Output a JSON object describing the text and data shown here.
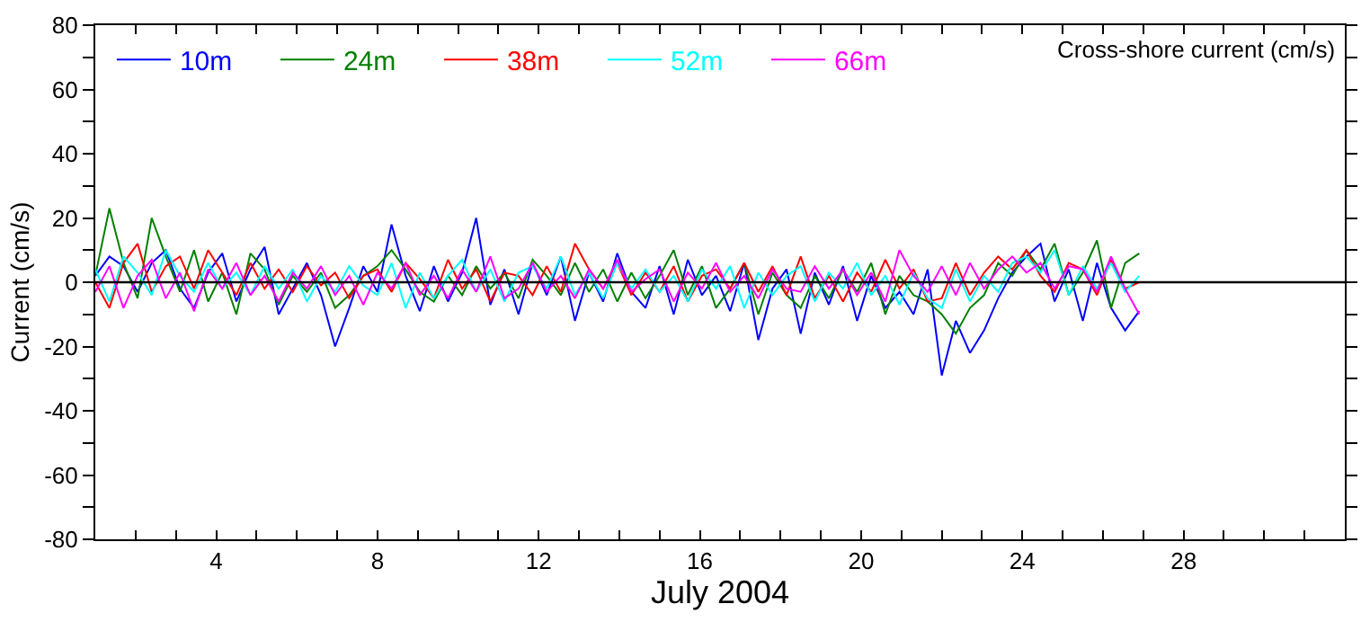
{
  "chart_data": {
    "type": "line",
    "title": "Cross-shore current (cm/s)",
    "xlabel": "July 2004",
    "ylabel": "Current (cm/s)",
    "x": [
      1,
      1.35,
      1.7,
      2.05,
      2.4,
      2.75,
      3.1,
      3.45,
      3.8,
      4.15,
      4.5,
      4.85,
      5.2,
      5.55,
      5.9,
      6.25,
      6.6,
      6.95,
      7.3,
      7.65,
      8,
      8.35,
      8.7,
      9.05,
      9.4,
      9.75,
      10.1,
      10.45,
      10.8,
      11.15,
      11.5,
      11.85,
      12.2,
      12.55,
      12.9,
      13.25,
      13.6,
      13.95,
      14.3,
      14.65,
      15,
      15.35,
      15.7,
      16.05,
      16.4,
      16.75,
      17.1,
      17.45,
      17.8,
      18.15,
      18.5,
      18.85,
      19.2,
      19.55,
      19.9,
      20.25,
      20.6,
      20.95,
      21.3,
      21.65,
      22,
      22.35,
      22.7,
      23.05,
      23.4,
      23.75,
      24.1,
      24.45,
      24.8,
      25.15,
      25.5,
      25.85,
      26.2,
      26.55,
      26.9
    ],
    "series": [
      {
        "name": "10m",
        "color": "#0000ff",
        "values": [
          2,
          8,
          5,
          -3,
          6,
          10,
          -2,
          -8,
          3,
          9,
          -6,
          4,
          11,
          -10,
          -2,
          6,
          -4,
          -20,
          -8,
          5,
          -3,
          18,
          2,
          -9,
          5,
          -6,
          3,
          20,
          -7,
          4,
          -10,
          6,
          -4,
          8,
          -12,
          3,
          -6,
          9,
          -3,
          -8,
          5,
          -10,
          7,
          -4,
          2,
          -9,
          6,
          -18,
          -2,
          4,
          -16,
          3,
          -7,
          5,
          -12,
          2,
          -8,
          -3,
          -10,
          4,
          -29,
          -12,
          -22,
          -15,
          -5,
          3,
          8,
          12,
          -6,
          4,
          -12,
          6,
          -8,
          -15,
          -9
        ]
      },
      {
        "name": "24m",
        "color": "#008000",
        "values": [
          2,
          23,
          6,
          -5,
          20,
          8,
          -3,
          10,
          -6,
          3,
          -10,
          9,
          4,
          -7,
          2,
          -3,
          3,
          -8,
          -4,
          2,
          5,
          10,
          4,
          -3,
          -6,
          2,
          -4,
          5,
          -2,
          3,
          -5,
          7,
          2,
          -4,
          6,
          -3,
          4,
          -6,
          3,
          -5,
          2,
          10,
          -4,
          5,
          -8,
          -2,
          6,
          -10,
          3,
          -4,
          -8,
          2,
          -5,
          4,
          -3,
          6,
          -10,
          2,
          -4,
          -6,
          -10,
          -16,
          -8,
          -4,
          6,
          2,
          10,
          4,
          12,
          -4,
          3,
          13,
          -8,
          6,
          9
        ]
      },
      {
        "name": "38m",
        "color": "#ff0000",
        "values": [
          0,
          -8,
          6,
          12,
          -3,
          5,
          8,
          -2,
          10,
          3,
          -4,
          6,
          -2,
          4,
          -3,
          5,
          -1,
          3,
          -5,
          2,
          4,
          -3,
          6,
          1,
          -5,
          7,
          -2,
          4,
          -6,
          3,
          2,
          -4,
          5,
          -3,
          12,
          4,
          -2,
          6,
          -4,
          3,
          -3,
          5,
          -6,
          2,
          4,
          -2,
          6,
          -3,
          5,
          -4,
          8,
          -5,
          2,
          -6,
          3,
          -3,
          7,
          -2,
          4,
          -6,
          -5,
          6,
          -4,
          3,
          8,
          4,
          10,
          2,
          -3,
          6,
          4,
          -4,
          7,
          -2,
          0
        ]
      },
      {
        "name": "52m",
        "color": "#00ffff",
        "values": [
          4,
          -6,
          8,
          3,
          -4,
          10,
          2,
          -3,
          6,
          -2,
          3,
          -4,
          5,
          -2,
          4,
          -6,
          2,
          -3,
          5,
          -1,
          -4,
          6,
          -8,
          3,
          -5,
          2,
          7,
          -3,
          4,
          -6,
          3,
          5,
          -2,
          8,
          -4,
          3,
          -5,
          6,
          -2,
          4,
          -3,
          2,
          -6,
          4,
          -2,
          5,
          -8,
          3,
          -4,
          2,
          5,
          -6,
          3,
          -2,
          6,
          -4,
          2,
          -7,
          3,
          -5,
          -8,
          4,
          -6,
          2,
          -3,
          6,
          8,
          3,
          10,
          -4,
          5,
          -2,
          6,
          -3,
          2
        ]
      },
      {
        "name": "66m",
        "color": "#ff00ff",
        "values": [
          -3,
          5,
          -8,
          2,
          7,
          -5,
          3,
          -9,
          4,
          -2,
          6,
          -4,
          2,
          -6,
          3,
          -2,
          5,
          -4,
          2,
          -7,
          3,
          -2,
          6,
          -4,
          2,
          -5,
          4,
          -3,
          8,
          -5,
          -2,
          6,
          -3,
          2,
          -5,
          4,
          -2,
          7,
          -3,
          1,
          4,
          -6,
          3,
          -2,
          6,
          -3,
          2,
          -5,
          4,
          -2,
          -3,
          5,
          -2,
          4,
          -4,
          3,
          -6,
          10,
          2,
          -3,
          5,
          -4,
          6,
          -2,
          4,
          8,
          3,
          6,
          -2,
          5,
          4,
          -3,
          8,
          -2,
          -10
        ]
      }
    ],
    "xlim": [
      1,
      32
    ],
    "xticks": [
      {
        "value": 1,
        "label": null
      },
      {
        "value": 2,
        "label": null
      },
      {
        "value": 3,
        "label": null
      },
      4,
      {
        "value": 5,
        "label": null
      },
      {
        "value": 6,
        "label": null
      },
      {
        "value": 7,
        "label": null
      },
      8,
      {
        "value": 9,
        "label": null
      },
      {
        "value": 10,
        "label": null
      },
      {
        "value": 11,
        "label": null
      },
      12,
      {
        "value": 13,
        "label": null
      },
      {
        "value": 14,
        "label": null
      },
      {
        "value": 15,
        "label": null
      },
      16,
      {
        "value": 17,
        "label": null
      },
      {
        "value": 18,
        "label": null
      },
      {
        "value": 19,
        "label": null
      },
      20,
      {
        "value": 21,
        "label": null
      },
      {
        "value": 22,
        "label": null
      },
      {
        "value": 23,
        "label": null
      },
      24,
      {
        "value": 25,
        "label": null
      },
      {
        "value": 26,
        "label": null
      },
      {
        "value": 27,
        "label": null
      },
      28,
      {
        "value": 29,
        "label": null
      },
      {
        "value": 30,
        "label": null
      },
      {
        "value": 31,
        "label": null
      },
      {
        "value": 32,
        "label": null
      }
    ],
    "ylim": [
      -80,
      80
    ],
    "yticks": [
      -80,
      {
        "value": -70,
        "label": null
      },
      -60,
      {
        "value": -50,
        "label": null
      },
      -40,
      {
        "value": -30,
        "label": null
      },
      -20,
      {
        "value": -10,
        "label": null
      },
      0,
      {
        "value": 10,
        "label": null
      },
      20,
      {
        "value": 30,
        "label": null
      },
      40,
      {
        "value": 50,
        "label": null
      },
      60,
      {
        "value": 70,
        "label": null
      },
      80
    ],
    "ref_lines": [
      {
        "axis": "y",
        "value": 0,
        "color": "#000000"
      }
    ],
    "legend": "top left",
    "marker": "none",
    "line_style": "solid"
  }
}
